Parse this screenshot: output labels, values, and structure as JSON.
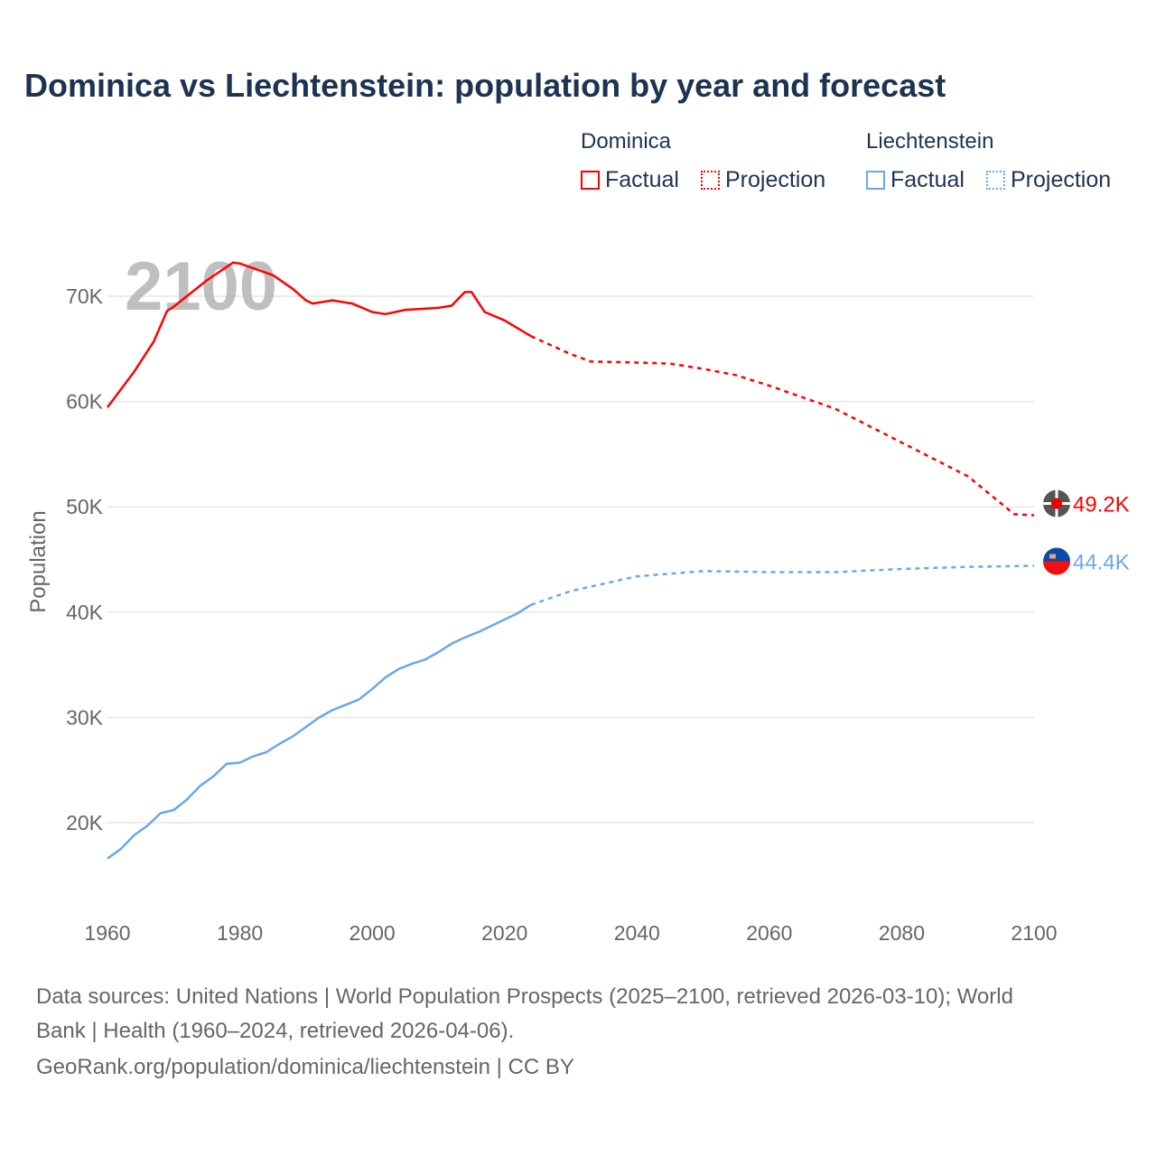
{
  "title": "Dominica vs Liechtenstein: population by year and forecast",
  "legend": {
    "groups": [
      {
        "name": "Dominica",
        "factual": "Factual",
        "projection": "Projection",
        "color": "#ff0000"
      },
      {
        "name": "Liechtenstein",
        "factual": "Factual",
        "projection": "Projection",
        "color": "#6aa8e8"
      }
    ]
  },
  "footer": {
    "line1": "Data sources: United Nations | World Population Prospects (2025–2100, retrieved 2026-03-10); World",
    "line2": "Bank | Health (1960–2024, retrieved 2026-04-06).",
    "line3": "GeoRank.org/population/dominica/liechtenstein | CC BY"
  },
  "chart_data": {
    "type": "line",
    "title": "Dominica vs Liechtenstein: population by year and forecast",
    "ylabel": "Population",
    "xlabel": "",
    "year_watermark": "2100",
    "xlim": [
      1960,
      2100
    ],
    "ylim": [
      13000,
      75000
    ],
    "xticks": [
      1960,
      1980,
      2000,
      2020,
      2040,
      2060,
      2080,
      2100
    ],
    "xtick_labels": [
      "1960",
      "1980",
      "2000",
      "2020",
      "2040",
      "2060",
      "2080",
      "2100"
    ],
    "yticks": [
      20000,
      30000,
      40000,
      50000,
      60000,
      70000
    ],
    "ytick_labels": [
      "20K",
      "30K",
      "40K",
      "50K",
      "60K",
      "70K"
    ],
    "grid": true,
    "legend_position": "top-right",
    "series": [
      {
        "name": "Dominica",
        "color": "#ff0000",
        "end_label": "49.2K",
        "factual": {
          "x": [
            1960,
            1964,
            1967,
            1969,
            1970,
            1975,
            1979,
            1980,
            1985,
            1988,
            1990,
            1991,
            1994,
            1997,
            2000,
            2002,
            2005,
            2010,
            2012,
            2014,
            2015,
            2017,
            2020,
            2024
          ],
          "y": [
            59450,
            62800,
            65700,
            68600,
            69000,
            71500,
            73200,
            73100,
            72000,
            70700,
            69600,
            69300,
            69600,
            69300,
            68500,
            68300,
            68700,
            68900,
            69100,
            70400,
            70400,
            68500,
            67700,
            66200
          ]
        },
        "projection": {
          "x": [
            2024,
            2030,
            2033,
            2040,
            2045,
            2050,
            2055,
            2060,
            2070,
            2080,
            2090,
            2097,
            2100
          ],
          "y": [
            66200,
            64500,
            63800,
            63700,
            63600,
            63100,
            62500,
            61500,
            59300,
            56100,
            52900,
            49300,
            49200
          ]
        }
      },
      {
        "name": "Liechtenstein",
        "color": "#6aa8e8",
        "end_label": "44.4K",
        "factual": {
          "x": [
            1960,
            1962,
            1964,
            1966,
            1968,
            1970,
            1972,
            1974,
            1976,
            1978,
            1980,
            1982,
            1984,
            1986,
            1988,
            1990,
            1992,
            1994,
            1996,
            1998,
            2000,
            2002,
            2004,
            2006,
            2008,
            2010,
            2012,
            2014,
            2016,
            2018,
            2020,
            2022,
            2024
          ],
          "y": [
            16600,
            17500,
            18800,
            19700,
            20900,
            21200,
            22200,
            23500,
            24400,
            25600,
            25700,
            26300,
            26700,
            27500,
            28200,
            29100,
            30000,
            30700,
            31200,
            31700,
            32700,
            33800,
            34600,
            35100,
            35500,
            36200,
            37000,
            37600,
            38100,
            38700,
            39300,
            39900,
            40700
          ]
        },
        "projection": {
          "x": [
            2024,
            2030,
            2040,
            2050,
            2060,
            2070,
            2080,
            2090,
            2100
          ],
          "y": [
            40700,
            42000,
            43400,
            43900,
            43800,
            43800,
            44100,
            44300,
            44400
          ]
        }
      }
    ]
  }
}
